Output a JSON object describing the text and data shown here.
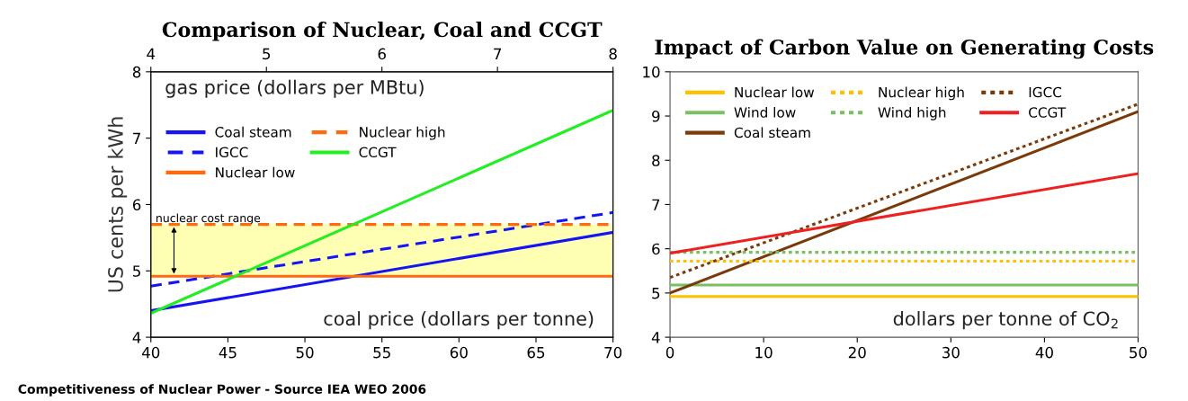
{
  "chart_data": [
    {
      "type": "line",
      "title": "Comparison of Nuclear, Coal and CCGT",
      "xlabel": "coal price (dollars per tonne)",
      "x2label": "gas price (dollars per MBtu)",
      "ylabel": "US cents per kWh",
      "x": [
        40,
        70
      ],
      "xlim": [
        40,
        70
      ],
      "xticks": [
        40,
        45,
        50,
        55,
        60,
        65,
        70
      ],
      "x2lim": [
        4,
        8
      ],
      "x2ticks": [
        4,
        5,
        6,
        7,
        8
      ],
      "ylim": [
        4,
        8
      ],
      "yticks": [
        4,
        5,
        6,
        7,
        8
      ],
      "series": [
        {
          "name": "Coal steam",
          "color": "#1414f5",
          "values": [
            4.4,
            5.58
          ],
          "line_style": "solid"
        },
        {
          "name": "IGCC",
          "color": "#1414f5",
          "values": [
            4.77,
            5.88
          ],
          "line_style": "dashed"
        },
        {
          "name": "Nuclear low",
          "color": "#ff6a10",
          "values": [
            4.92,
            4.92
          ],
          "line_style": "solid"
        },
        {
          "name": "Nuclear high",
          "color": "#ff6a10",
          "values": [
            5.7,
            5.7
          ],
          "line_style": "dashed"
        },
        {
          "name": "CCGT",
          "color": "#22ee22",
          "values": [
            4.36,
            7.42
          ],
          "line_style": "solid"
        }
      ],
      "bands": [
        {
          "axis": "y",
          "from": 4.92,
          "to": 5.7,
          "label": "nuclear cost range",
          "color": "#ffffb3"
        }
      ],
      "legend": "top left",
      "grid": false,
      "annotations": [
        "Competitiveness of Nuclear Power - Source IEA WEO 2006"
      ]
    },
    {
      "type": "line",
      "title": "Impact of Carbon Value on Generating Costs",
      "xlabel": "dollars per tonne of CO$_{2}$",
      "x": [
        0,
        50
      ],
      "xlim": [
        0,
        50
      ],
      "xticks": [
        0,
        10,
        20,
        30,
        40,
        50
      ],
      "ylim": [
        4,
        10
      ],
      "yticks": [
        4,
        5,
        6,
        7,
        8,
        9,
        10
      ],
      "series": [
        {
          "name": "Nuclear low",
          "color": "#ffc000",
          "values": [
            4.92,
            4.92
          ],
          "line_style": "solid"
        },
        {
          "name": "Wind low",
          "color": "#78c060",
          "values": [
            5.18,
            5.18
          ],
          "line_style": "solid"
        },
        {
          "name": "Coal steam",
          "color": "#7a3a0a",
          "values": [
            5.0,
            9.1
          ],
          "line_style": "solid"
        },
        {
          "name": "Nuclear high",
          "color": "#ffc000",
          "values": [
            5.72,
            5.72
          ],
          "line_style": "dotted"
        },
        {
          "name": "Wind high",
          "color": "#78c060",
          "values": [
            5.92,
            5.92
          ],
          "line_style": "dotted"
        },
        {
          "name": "IGCC",
          "color": "#7a3a0a",
          "values": [
            5.35,
            9.27
          ],
          "line_style": "dotted"
        },
        {
          "name": "CCGT",
          "color": "#ee2020",
          "values": [
            5.9,
            7.7
          ],
          "line_style": "solid"
        }
      ],
      "legend": "top left",
      "grid": false
    }
  ]
}
